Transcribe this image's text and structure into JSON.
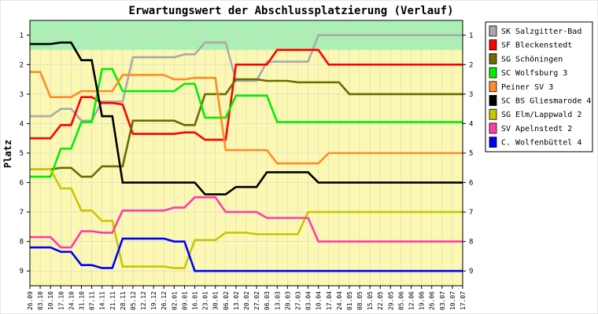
{
  "chart_data": {
    "type": "line",
    "title": "Erwartungswert der Abschlussplatzierung (Verlauf)",
    "ylabel": "Platz",
    "xlabel": "",
    "ylim": [
      0.5,
      9.5
    ],
    "y_inverted": true,
    "yticks": [
      1,
      2,
      3,
      4,
      5,
      6,
      7,
      8,
      9
    ],
    "grid": true,
    "legend_position": "right",
    "background_bands": [
      {
        "from": 0.5,
        "to": 1.5,
        "color": "#aaf0b4"
      },
      {
        "from": 1.5,
        "to": 9.5,
        "color": "#fbf8b4"
      }
    ],
    "x": [
      "26.09",
      "03.10",
      "10.10",
      "17.10",
      "24.10",
      "31.10",
      "07.11",
      "14.11",
      "21.11",
      "28.11",
      "05.12",
      "12.12",
      "19.12",
      "26.12",
      "02.01",
      "09.01",
      "16.01",
      "23.01",
      "30.01",
      "06.02",
      "13.02",
      "20.02",
      "27.02",
      "06.03",
      "13.03",
      "20.03",
      "27.03",
      "03.04",
      "10.04",
      "17.04",
      "24.04",
      "01.05",
      "08.05",
      "15.05",
      "22.05",
      "29.05",
      "05.06",
      "12.06",
      "19.06",
      "26.06",
      "03.07",
      "10.07",
      "17.07"
    ],
    "series": [
      {
        "name": "SK Salzgitter-Bad",
        "color": "#aaaaaa",
        "values": [
          3.75,
          3.75,
          3.75,
          3.5,
          3.5,
          3.9,
          3.9,
          3.25,
          3.25,
          3.25,
          1.75,
          1.75,
          1.75,
          1.75,
          1.75,
          1.65,
          1.65,
          1.25,
          1.25,
          1.25,
          2.55,
          2.55,
          2.55,
          1.9,
          1.9,
          1.9,
          1.9,
          1.9,
          1.0,
          1.0,
          1.0,
          1.0,
          1.0,
          1.0,
          1.0,
          1.0,
          1.0,
          1.0,
          1.0,
          1.0,
          1.0,
          1.0,
          1.0
        ]
      },
      {
        "name": "SF Bleckenstedt",
        "color": "#ff0000",
        "values": [
          4.5,
          4.5,
          4.5,
          4.05,
          4.05,
          3.1,
          3.1,
          3.3,
          3.3,
          3.35,
          4.35,
          4.35,
          4.35,
          4.35,
          4.35,
          4.3,
          4.3,
          4.55,
          4.55,
          4.55,
          2.0,
          2.0,
          2.0,
          2.0,
          1.5,
          1.5,
          1.5,
          1.5,
          1.5,
          2.0,
          2.0,
          2.0,
          2.0,
          2.0,
          2.0,
          2.0,
          2.0,
          2.0,
          2.0,
          2.0,
          2.0,
          2.0,
          2.0
        ]
      },
      {
        "name": "SG Schöningen",
        "color": "#6b6b00",
        "values": [
          5.55,
          5.55,
          5.55,
          5.5,
          5.5,
          5.8,
          5.8,
          5.45,
          5.45,
          5.45,
          3.9,
          3.9,
          3.9,
          3.9,
          3.9,
          4.05,
          4.05,
          3.0,
          3.0,
          3.0,
          2.5,
          2.5,
          2.5,
          2.55,
          2.55,
          2.55,
          2.6,
          2.6,
          2.6,
          2.6,
          2.6,
          3.0,
          3.0,
          3.0,
          3.0,
          3.0,
          3.0,
          3.0,
          3.0,
          3.0,
          3.0,
          3.0,
          3.0
        ]
      },
      {
        "name": "SC Wolfsburg 3",
        "color": "#00ee00",
        "values": [
          5.8,
          5.8,
          5.8,
          4.85,
          4.85,
          3.95,
          3.95,
          2.15,
          2.15,
          2.9,
          2.9,
          2.9,
          2.9,
          2.9,
          2.9,
          2.65,
          2.65,
          3.8,
          3.8,
          3.8,
          3.05,
          3.05,
          3.05,
          3.05,
          3.95,
          3.95,
          3.95,
          3.95,
          3.95,
          3.95,
          3.95,
          3.95,
          3.95,
          3.95,
          3.95,
          3.95,
          3.95,
          3.95,
          3.95,
          3.95,
          3.95,
          3.95,
          3.95
        ]
      },
      {
        "name": "Peiner SV 3",
        "color": "#ff8c28",
        "values": [
          2.25,
          2.25,
          3.1,
          3.1,
          3.1,
          2.9,
          2.9,
          2.9,
          2.9,
          2.35,
          2.35,
          2.35,
          2.35,
          2.35,
          2.5,
          2.5,
          2.45,
          2.45,
          2.45,
          4.9,
          4.9,
          4.9,
          4.9,
          4.9,
          5.35,
          5.35,
          5.35,
          5.35,
          5.35,
          5.0,
          5.0,
          5.0,
          5.0,
          5.0,
          5.0,
          5.0,
          5.0,
          5.0,
          5.0,
          5.0,
          5.0,
          5.0,
          5.0
        ]
      },
      {
        "name": "SC BS Gliesmarode 4",
        "color": "#000000",
        "values": [
          1.3,
          1.3,
          1.3,
          1.25,
          1.25,
          1.85,
          1.85,
          3.75,
          3.75,
          6.0,
          6.0,
          6.0,
          6.0,
          6.0,
          6.0,
          6.0,
          6.0,
          6.4,
          6.4,
          6.4,
          6.15,
          6.15,
          6.15,
          5.65,
          5.65,
          5.65,
          5.65,
          5.65,
          6.0,
          6.0,
          6.0,
          6.0,
          6.0,
          6.0,
          6.0,
          6.0,
          6.0,
          6.0,
          6.0,
          6.0,
          6.0,
          6.0,
          6.0
        ]
      },
      {
        "name": "SG Elm/Lappwald 2",
        "color": "#c8c800",
        "values": [
          5.55,
          5.55,
          5.55,
          6.2,
          6.2,
          6.95,
          6.95,
          7.3,
          7.3,
          8.85,
          8.85,
          8.85,
          8.85,
          8.85,
          8.9,
          8.9,
          7.95,
          7.95,
          7.95,
          7.7,
          7.7,
          7.7,
          7.75,
          7.75,
          7.75,
          7.75,
          7.75,
          7.0,
          7.0,
          7.0,
          7.0,
          7.0,
          7.0,
          7.0,
          7.0,
          7.0,
          7.0,
          7.0,
          7.0,
          7.0,
          7.0,
          7.0,
          7.0
        ]
      },
      {
        "name": "SV Apelnstedt 2",
        "color": "#ff3caa",
        "values": [
          7.85,
          7.85,
          7.85,
          8.2,
          8.2,
          7.65,
          7.65,
          7.7,
          7.7,
          6.95,
          6.95,
          6.95,
          6.95,
          6.95,
          6.85,
          6.85,
          6.5,
          6.5,
          6.5,
          7.0,
          7.0,
          7.0,
          7.0,
          7.2,
          7.2,
          7.2,
          7.2,
          7.2,
          8.0,
          8.0,
          8.0,
          8.0,
          8.0,
          8.0,
          8.0,
          8.0,
          8.0,
          8.0,
          8.0,
          8.0,
          8.0,
          8.0,
          8.0
        ]
      },
      {
        "name": "C. Wolfenbüttel 4",
        "color": "#0000ff",
        "values": [
          8.2,
          8.2,
          8.2,
          8.35,
          8.35,
          8.8,
          8.8,
          8.9,
          8.9,
          7.9,
          7.9,
          7.9,
          7.9,
          7.9,
          8.0,
          8.0,
          9.0,
          9.0,
          9.0,
          9.0,
          9.0,
          9.0,
          9.0,
          9.0,
          9.0,
          9.0,
          9.0,
          9.0,
          9.0,
          9.0,
          9.0,
          9.0,
          9.0,
          9.0,
          9.0,
          9.0,
          9.0,
          9.0,
          9.0,
          9.0,
          9.0,
          9.0,
          9.0
        ]
      }
    ]
  }
}
